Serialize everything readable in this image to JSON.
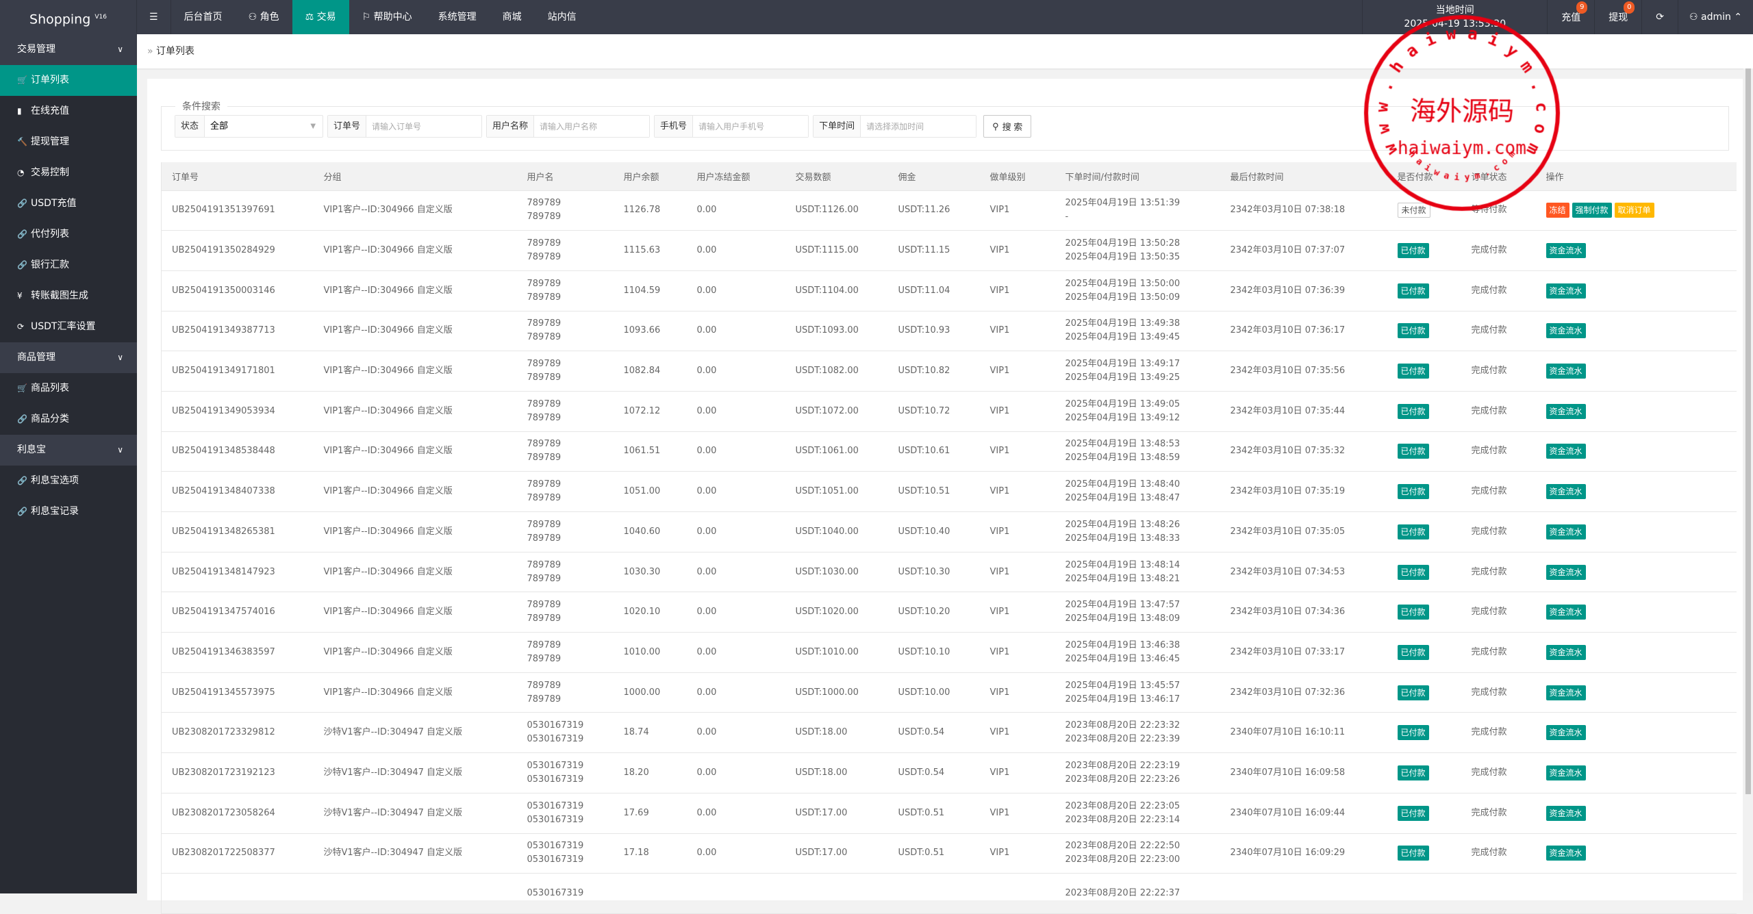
{
  "app": {
    "name": "Shopping",
    "version": "V16"
  },
  "nav": [
    {
      "label": "后台首页",
      "icon": ""
    },
    {
      "label": "角色",
      "icon": "user-icon"
    },
    {
      "label": "交易",
      "icon": "scale-icon",
      "active": true
    },
    {
      "label": "帮助中心",
      "icon": "flag-icon"
    },
    {
      "label": "系统管理",
      "icon": ""
    },
    {
      "label": "商城",
      "icon": ""
    },
    {
      "label": "站内信",
      "icon": ""
    }
  ],
  "header": {
    "time_label": "当地时间",
    "time_value": "2025-04-19 13:53:30",
    "recharge": "充值",
    "recharge_badge": "9",
    "withdraw": "提现",
    "withdraw_badge": "0",
    "user": "admin"
  },
  "sidebar": [
    {
      "label": "交易管理",
      "type": "group"
    },
    {
      "label": "订单列表",
      "icon": "🛒",
      "active": true
    },
    {
      "label": "在线充值",
      "icon": "▮"
    },
    {
      "label": "提现管理",
      "icon": "🔨"
    },
    {
      "label": "交易控制",
      "icon": "◔"
    },
    {
      "label": "USDT充值",
      "icon": "🔗"
    },
    {
      "label": "代付列表",
      "icon": "🔗"
    },
    {
      "label": "银行汇款",
      "icon": "🔗"
    },
    {
      "label": "转账截图生成",
      "icon": "¥"
    },
    {
      "label": "USDT汇率设置",
      "icon": "⟳"
    },
    {
      "label": "商品管理",
      "type": "group"
    },
    {
      "label": "商品列表",
      "icon": "🛒"
    },
    {
      "label": "商品分类",
      "icon": "🔗"
    },
    {
      "label": "利息宝",
      "type": "group"
    },
    {
      "label": "利息宝选项",
      "icon": "🔗"
    },
    {
      "label": "利息宝记录",
      "icon": "🔗"
    }
  ],
  "breadcrumb": "订单列表",
  "search": {
    "legend": "条件搜索",
    "status_label": "状态",
    "status_value": "全部",
    "order_label": "订单号",
    "order_placeholder": "请输入订单号",
    "user_label": "用户名称",
    "user_placeholder": "请输入用户名称",
    "phone_label": "手机号",
    "phone_placeholder": "请输入用户手机号",
    "time_label": "下单时间",
    "time_placeholder": "请选择添加时间",
    "button": "搜 索"
  },
  "table": {
    "columns": [
      "订单号",
      "分组",
      "用户名",
      "用户余额",
      "用户冻结金额",
      "交易数额",
      "佣金",
      "做单级别",
      "下单时间/付款时间",
      "最后付款时间",
      "是否付款",
      "订单状态",
      "操作"
    ],
    "rows": [
      [
        "UB2504191351397691",
        "VIP1客户--ID:304966 自定义版",
        "789789",
        "789789",
        "1126.78",
        "0.00",
        "USDT:1126.00",
        "USDT:11.26",
        "VIP1",
        "2025年04月19日 13:51:39",
        "-",
        "2342年03月10日 07:38:18",
        "未付款",
        "等待付款",
        [
          "冻结",
          "强制付款",
          "取消订单"
        ]
      ],
      [
        "UB2504191350284929",
        "VIP1客户--ID:304966 自定义版",
        "789789",
        "789789",
        "1115.63",
        "0.00",
        "USDT:1115.00",
        "USDT:11.15",
        "VIP1",
        "2025年04月19日 13:50:28",
        "2025年04月19日 13:50:35",
        "2342年03月10日 07:37:07",
        "已付款",
        "完成付款",
        [
          "资金流水"
        ]
      ],
      [
        "UB2504191350003146",
        "VIP1客户--ID:304966 自定义版",
        "789789",
        "789789",
        "1104.59",
        "0.00",
        "USDT:1104.00",
        "USDT:11.04",
        "VIP1",
        "2025年04月19日 13:50:00",
        "2025年04月19日 13:50:09",
        "2342年03月10日 07:36:39",
        "已付款",
        "完成付款",
        [
          "资金流水"
        ]
      ],
      [
        "UB2504191349387713",
        "VIP1客户--ID:304966 自定义版",
        "789789",
        "789789",
        "1093.66",
        "0.00",
        "USDT:1093.00",
        "USDT:10.93",
        "VIP1",
        "2025年04月19日 13:49:38",
        "2025年04月19日 13:49:45",
        "2342年03月10日 07:36:17",
        "已付款",
        "完成付款",
        [
          "资金流水"
        ]
      ],
      [
        "UB2504191349171801",
        "VIP1客户--ID:304966 自定义版",
        "789789",
        "789789",
        "1082.84",
        "0.00",
        "USDT:1082.00",
        "USDT:10.82",
        "VIP1",
        "2025年04月19日 13:49:17",
        "2025年04月19日 13:49:25",
        "2342年03月10日 07:35:56",
        "已付款",
        "完成付款",
        [
          "资金流水"
        ]
      ],
      [
        "UB2504191349053934",
        "VIP1客户--ID:304966 自定义版",
        "789789",
        "789789",
        "1072.12",
        "0.00",
        "USDT:1072.00",
        "USDT:10.72",
        "VIP1",
        "2025年04月19日 13:49:05",
        "2025年04月19日 13:49:12",
        "2342年03月10日 07:35:44",
        "已付款",
        "完成付款",
        [
          "资金流水"
        ]
      ],
      [
        "UB2504191348538448",
        "VIP1客户--ID:304966 自定义版",
        "789789",
        "789789",
        "1061.51",
        "0.00",
        "USDT:1061.00",
        "USDT:10.61",
        "VIP1",
        "2025年04月19日 13:48:53",
        "2025年04月19日 13:48:59",
        "2342年03月10日 07:35:32",
        "已付款",
        "完成付款",
        [
          "资金流水"
        ]
      ],
      [
        "UB2504191348407338",
        "VIP1客户--ID:304966 自定义版",
        "789789",
        "789789",
        "1051.00",
        "0.00",
        "USDT:1051.00",
        "USDT:10.51",
        "VIP1",
        "2025年04月19日 13:48:40",
        "2025年04月19日 13:48:47",
        "2342年03月10日 07:35:19",
        "已付款",
        "完成付款",
        [
          "资金流水"
        ]
      ],
      [
        "UB2504191348265381",
        "VIP1客户--ID:304966 自定义版",
        "789789",
        "789789",
        "1040.60",
        "0.00",
        "USDT:1040.00",
        "USDT:10.40",
        "VIP1",
        "2025年04月19日 13:48:26",
        "2025年04月19日 13:48:33",
        "2342年03月10日 07:35:05",
        "已付款",
        "完成付款",
        [
          "资金流水"
        ]
      ],
      [
        "UB2504191348147923",
        "VIP1客户--ID:304966 自定义版",
        "789789",
        "789789",
        "1030.30",
        "0.00",
        "USDT:1030.00",
        "USDT:10.30",
        "VIP1",
        "2025年04月19日 13:48:14",
        "2025年04月19日 13:48:21",
        "2342年03月10日 07:34:53",
        "已付款",
        "完成付款",
        [
          "资金流水"
        ]
      ],
      [
        "UB2504191347574016",
        "VIP1客户--ID:304966 自定义版",
        "789789",
        "789789",
        "1020.10",
        "0.00",
        "USDT:1020.00",
        "USDT:10.20",
        "VIP1",
        "2025年04月19日 13:47:57",
        "2025年04月19日 13:48:09",
        "2342年03月10日 07:34:36",
        "已付款",
        "完成付款",
        [
          "资金流水"
        ]
      ],
      [
        "UB2504191346383597",
        "VIP1客户--ID:304966 自定义版",
        "789789",
        "789789",
        "1010.00",
        "0.00",
        "USDT:1010.00",
        "USDT:10.10",
        "VIP1",
        "2025年04月19日 13:46:38",
        "2025年04月19日 13:46:45",
        "2342年03月10日 07:33:17",
        "已付款",
        "完成付款",
        [
          "资金流水"
        ]
      ],
      [
        "UB2504191345573975",
        "VIP1客户--ID:304966 自定义版",
        "789789",
        "789789",
        "1000.00",
        "0.00",
        "USDT:1000.00",
        "USDT:10.00",
        "VIP1",
        "2025年04月19日 13:45:57",
        "2025年04月19日 13:46:17",
        "2342年03月10日 07:32:36",
        "已付款",
        "完成付款",
        [
          "资金流水"
        ]
      ],
      [
        "UB2308201723329812",
        "沙特V1客户--ID:304947 自定义版",
        "0530167319",
        "0530167319",
        "18.74",
        "0.00",
        "USDT:18.00",
        "USDT:0.54",
        "VIP1",
        "2023年08月20日 22:23:32",
        "2023年08月20日 22:23:39",
        "2340年07月10日 16:10:11",
        "已付款",
        "完成付款",
        [
          "资金流水"
        ]
      ],
      [
        "UB2308201723192123",
        "沙特V1客户--ID:304947 自定义版",
        "0530167319",
        "0530167319",
        "18.20",
        "0.00",
        "USDT:18.00",
        "USDT:0.54",
        "VIP1",
        "2023年08月20日 22:23:19",
        "2023年08月20日 22:23:26",
        "2340年07月10日 16:09:58",
        "已付款",
        "完成付款",
        [
          "资金流水"
        ]
      ],
      [
        "UB2308201723058264",
        "沙特V1客户--ID:304947 自定义版",
        "0530167319",
        "0530167319",
        "17.69",
        "0.00",
        "USDT:17.00",
        "USDT:0.51",
        "VIP1",
        "2023年08月20日 22:23:05",
        "2023年08月20日 22:23:14",
        "2340年07月10日 16:09:44",
        "已付款",
        "完成付款",
        [
          "资金流水"
        ]
      ],
      [
        "UB2308201722508377",
        "沙特V1客户--ID:304947 自定义版",
        "0530167319",
        "0530167319",
        "17.18",
        "0.00",
        "USDT:17.00",
        "USDT:0.51",
        "VIP1",
        "2023年08月20日 22:22:50",
        "2023年08月20日 22:23:00",
        "2340年07月10日 16:09:29",
        "已付款",
        "完成付款",
        [
          "资金流水"
        ]
      ],
      [
        "",
        "",
        "0530167319",
        "",
        "",
        "",
        "",
        "",
        "",
        "2023年08月20日 22:22:37",
        "",
        "",
        "",
        "",
        []
      ]
    ]
  },
  "watermark": {
    "outer": "www.haiwaiym.com",
    "center": "海外源码",
    "sub": "haiwaiym.com",
    "inner": "haiwaiym.com",
    "color": "#e60012"
  },
  "colors": {
    "accent": "#009688",
    "topbar": "#393d49",
    "sidebar": "#282b33",
    "danger": "#ff5722",
    "warn": "#ffb800"
  }
}
